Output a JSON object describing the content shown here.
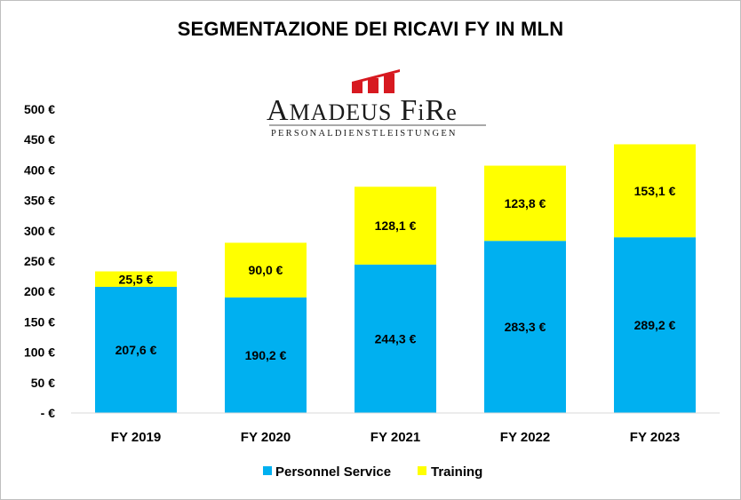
{
  "chart_data": {
    "type": "bar",
    "stacked": true,
    "title": "SEGMENTAZIONE DEI RICAVI FY IN MLN",
    "categories": [
      "FY 2019",
      "FY 2020",
      "FY 2021",
      "FY 2022",
      "FY 2023"
    ],
    "series": [
      {
        "name": "Personnel Service",
        "color": "#00b0f0",
        "values": [
          207.6,
          190.2,
          244.3,
          283.3,
          289.2
        ],
        "labels": [
          "207,6 €",
          "190,2 €",
          "244,3 €",
          "283,3 €",
          "289,2 €"
        ]
      },
      {
        "name": "Training",
        "color": "#ffff00",
        "values": [
          25.5,
          90.0,
          128.1,
          123.8,
          153.1
        ],
        "labels": [
          "25,5 €",
          "90,0 €",
          "128,1 €",
          "123,8 €",
          "153,1 €"
        ]
      }
    ],
    "ylim": [
      0,
      500
    ],
    "yticks": [
      0,
      50,
      100,
      150,
      200,
      250,
      300,
      350,
      400,
      450,
      500
    ],
    "ytick_labels": [
      "- €",
      "50 €",
      "100 €",
      "150 €",
      "200 €",
      "250 €",
      "300 €",
      "350 €",
      "400 €",
      "450 €",
      "500 €"
    ],
    "grid": false,
    "legend_position": "bottom"
  },
  "logo": {
    "name_A": "A",
    "name_madeus": "MADEUS",
    "name_F": "F",
    "name_i": "i",
    "name_R": "R",
    "name_e": "e",
    "tagline": "PERSONALDIENSTLEISTUNGEN",
    "brand_color": "#d71920"
  }
}
